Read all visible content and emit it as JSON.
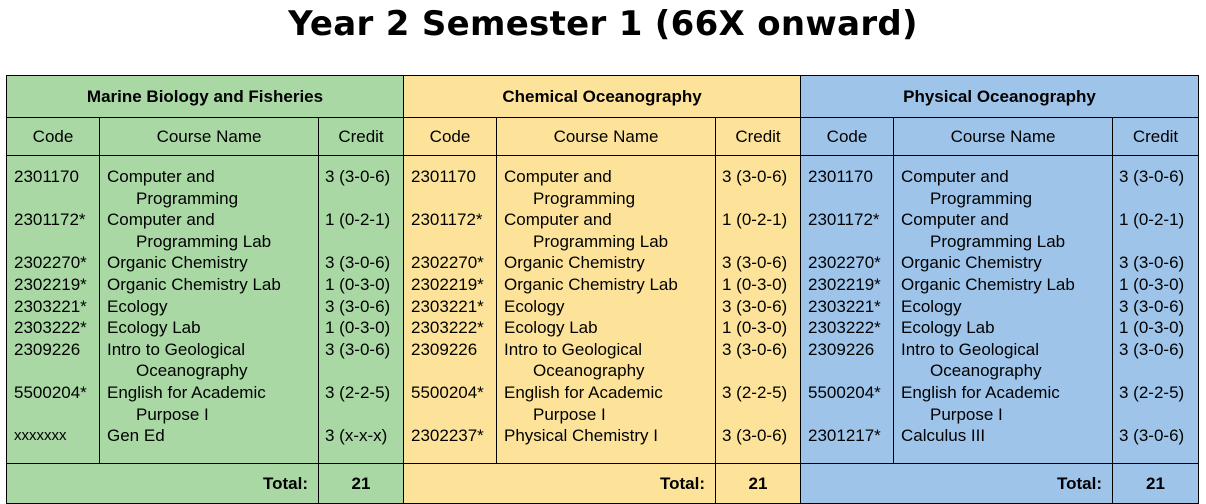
{
  "title": "Year 2 Semester 1 (66X onward)",
  "columns": {
    "code": "Code",
    "course_name": "Course Name",
    "credit": "Credit"
  },
  "total_label": "Total:",
  "colors": {
    "marine": "#a9d8a5",
    "chemical": "#fde39a",
    "physical": "#9ec4ea"
  },
  "programs": [
    {
      "name": "Marine Biology and Fisheries",
      "total": "21",
      "courses": [
        {
          "code": "2301170",
          "name": [
            "Computer and",
            "Programming"
          ],
          "credit": "3 (3-0-6)"
        },
        {
          "code": "2301172*",
          "name": [
            "Computer and",
            "Programming Lab"
          ],
          "credit": "1 (0-2-1)"
        },
        {
          "code": "2302270*",
          "name": [
            "Organic Chemistry"
          ],
          "credit": "3 (3-0-6)"
        },
        {
          "code": "2302219*",
          "name": [
            "Organic Chemistry Lab"
          ],
          "credit": "1 (0-3-0)"
        },
        {
          "code": "2303221*",
          "name": [
            "Ecology"
          ],
          "credit": "3 (3-0-6)"
        },
        {
          "code": "2303222*",
          "name": [
            "Ecology Lab"
          ],
          "credit": "1 (0-3-0)"
        },
        {
          "code": "2309226",
          "name": [
            "Intro to Geological",
            "Oceanography"
          ],
          "credit": "3 (3-0-6)"
        },
        {
          "code": "5500204*",
          "name": [
            "English for Academic",
            "Purpose I"
          ],
          "credit": "3 (2-2-5)"
        },
        {
          "code": "xxxxxxx",
          "name": [
            "Gen Ed"
          ],
          "credit": "3 (x-x-x)"
        }
      ]
    },
    {
      "name": "Chemical Oceanography",
      "total": "21",
      "courses": [
        {
          "code": "2301170",
          "name": [
            "Computer and",
            "Programming"
          ],
          "credit": "3 (3-0-6)"
        },
        {
          "code": "2301172*",
          "name": [
            "Computer and",
            "Programming Lab"
          ],
          "credit": "1 (0-2-1)"
        },
        {
          "code": "2302270*",
          "name": [
            "Organic Chemistry"
          ],
          "credit": "3 (3-0-6)"
        },
        {
          "code": "2302219*",
          "name": [
            "Organic Chemistry Lab"
          ],
          "credit": "1 (0-3-0)"
        },
        {
          "code": "2303221*",
          "name": [
            "Ecology"
          ],
          "credit": "3 (3-0-6)"
        },
        {
          "code": "2303222*",
          "name": [
            "Ecology Lab"
          ],
          "credit": "1 (0-3-0)"
        },
        {
          "code": "2309226",
          "name": [
            "Intro to Geological",
            "Oceanography"
          ],
          "credit": "3 (3-0-6)"
        },
        {
          "code": "5500204*",
          "name": [
            "English for Academic",
            "Purpose I"
          ],
          "credit": "3 (2-2-5)"
        },
        {
          "code": "2302237*",
          "name": [
            "Physical Chemistry I"
          ],
          "credit": "3 (3-0-6)"
        }
      ]
    },
    {
      "name": "Physical Oceanography",
      "total": "21",
      "courses": [
        {
          "code": "2301170",
          "name": [
            "Computer and",
            "Programming"
          ],
          "credit": "3 (3-0-6)"
        },
        {
          "code": "2301172*",
          "name": [
            "Computer and",
            "Programming Lab"
          ],
          "credit": "1 (0-2-1)"
        },
        {
          "code": "2302270*",
          "name": [
            "Organic Chemistry"
          ],
          "credit": "3 (3-0-6)"
        },
        {
          "code": "2302219*",
          "name": [
            "Organic Chemistry Lab"
          ],
          "credit": "1 (0-3-0)"
        },
        {
          "code": "2303221*",
          "name": [
            "Ecology"
          ],
          "credit": "3 (3-0-6)"
        },
        {
          "code": "2303222*",
          "name": [
            "Ecology Lab"
          ],
          "credit": "1 (0-3-0)"
        },
        {
          "code": "2309226",
          "name": [
            "Intro to Geological",
            "Oceanography"
          ],
          "credit": "3 (3-0-6)"
        },
        {
          "code": "5500204*",
          "name": [
            "English for Academic",
            "Purpose I"
          ],
          "credit": "3 (2-2-5)"
        },
        {
          "code": "2301217*",
          "name": [
            "Calculus III"
          ],
          "credit": "3 (3-0-6)"
        }
      ]
    }
  ]
}
